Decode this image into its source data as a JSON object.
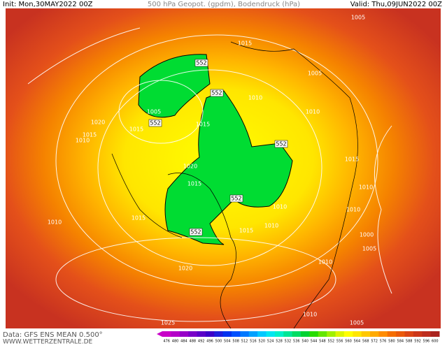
{
  "header": {
    "init": "Init: Mon,30MAY2022 00Z",
    "title": "500 hPa Geopot. (gpdm), Bodendruck (hPa)",
    "valid": "Valid: Thu,09JUN2022 00Z"
  },
  "footer": {
    "source": "Data: GFS ENS MEAN 0.500°",
    "site": "WWW.WETTERZENTRALE.DE"
  },
  "colorbar": {
    "labels": [
      476,
      480,
      484,
      488,
      492,
      496,
      500,
      504,
      508,
      512,
      516,
      520,
      524,
      528,
      532,
      536,
      540,
      544,
      548,
      552,
      556,
      560,
      564,
      568,
      572,
      576,
      580,
      584,
      588,
      592,
      596,
      600
    ],
    "colors": [
      "#c800c8",
      "#b400c8",
      "#9600c8",
      "#7800c8",
      "#5a00c8",
      "#3c00c8",
      "#1e1edc",
      "#0032f0",
      "#0050ff",
      "#0078ff",
      "#00a0ff",
      "#00c8ff",
      "#00e6f0",
      "#00f0c8",
      "#00e696",
      "#00dc64",
      "#00d232",
      "#28dc00",
      "#64e600",
      "#a0f000",
      "#dcf500",
      "#ffff00",
      "#ffe600",
      "#ffc800",
      "#ffaa00",
      "#ff8c00",
      "#f56e00",
      "#eb5a0a",
      "#dc4614",
      "#cd3719",
      "#be2d1e",
      "#aa231e"
    ]
  },
  "contour_labels": [
    552,
    1015,
    1005,
    1005,
    552,
    1010,
    1005,
    552,
    1015,
    1015,
    1020,
    1015,
    1010,
    1010,
    552,
    1020,
    1015,
    1015,
    1010,
    552,
    1010,
    1010,
    1015,
    1015,
    1010,
    552,
    1000,
    1005,
    1010,
    1010,
    1020,
    1010,
    1025,
    1005
  ]
}
